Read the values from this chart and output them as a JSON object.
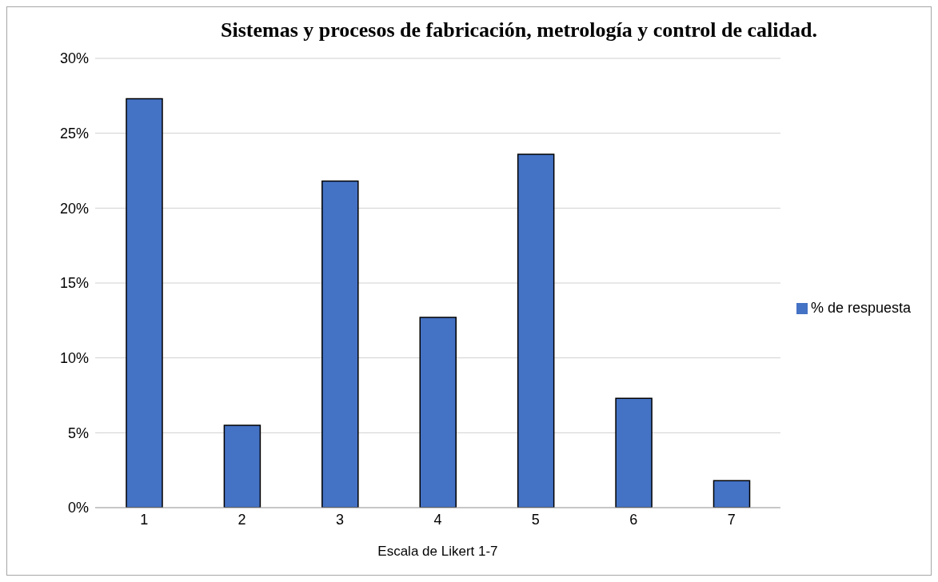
{
  "chart_data": {
    "type": "bar",
    "title": "Sistemas y procesos de fabricación, metrología y control de calidad.",
    "xlabel": "Escala de Likert 1-7",
    "categories": [
      "1",
      "2",
      "3",
      "4",
      "5",
      "6",
      "7"
    ],
    "series": [
      {
        "name": "% de respuesta",
        "color": "#4472c4",
        "values": [
          27.3,
          5.5,
          21.8,
          12.7,
          23.6,
          7.3,
          1.8
        ]
      }
    ],
    "ylim": [
      0,
      30
    ],
    "yticks": [
      {
        "value": 0,
        "label": "0%"
      },
      {
        "value": 5,
        "label": "5%"
      },
      {
        "value": 10,
        "label": "10%"
      },
      {
        "value": 15,
        "label": "15%"
      },
      {
        "value": 20,
        "label": "20%"
      },
      {
        "value": 25,
        "label": "25%"
      },
      {
        "value": 30,
        "label": "30%"
      }
    ],
    "grid": "y",
    "legend": "right"
  }
}
